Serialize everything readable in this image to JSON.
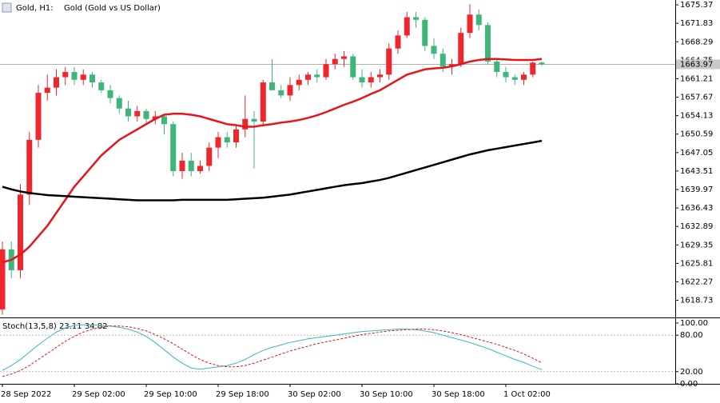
{
  "header": {
    "symbol": "Gold, H1:",
    "description": "Gold (Gold vs US Dollar)"
  },
  "chart_data": [
    {
      "type": "candlestick",
      "categories": [
        "28 Sep 2022",
        null,
        null,
        null,
        null,
        null,
        null,
        null,
        "29 Sep 02:00",
        null,
        null,
        null,
        null,
        null,
        null,
        null,
        "29 Sep 10:00",
        null,
        null,
        null,
        null,
        null,
        null,
        null,
        "29 Sep 18:00",
        null,
        null,
        null,
        null,
        null,
        null,
        null,
        "30 Sep 02:00",
        null,
        null,
        null,
        null,
        null,
        null,
        null,
        "30 Sep 10:00",
        null,
        null,
        null,
        null,
        null,
        null,
        null,
        "30 Sep 18:00",
        null,
        null,
        null,
        null,
        null,
        null,
        null,
        "1 Oct 02:00",
        null,
        null,
        null,
        null
      ],
      "open": [
        1617,
        1628.5,
        1624.5,
        1639,
        1649.5,
        1658.5,
        1659.5,
        1661.5,
        1662.5,
        1661,
        1662,
        1660.5,
        1659,
        1657.5,
        1655.5,
        1654,
        1655,
        1653.5,
        1654,
        1652.5,
        1643.5,
        1645.5,
        1643.5,
        1644.5,
        1648,
        1650,
        1649,
        1651.5,
        1653.5,
        1653,
        1660.5,
        1659,
        1658,
        1660,
        1661,
        1662,
        1661.5,
        1664,
        1665,
        1665.5,
        1661.5,
        1660.5,
        1661.5,
        1662,
        1667,
        1669.5,
        1673,
        1672.5,
        1667.5,
        1666,
        1663.5,
        1664,
        1670,
        1673.5,
        1671.5,
        1664.5,
        1662.5,
        1661.5,
        1661,
        1662,
        1664.3
      ],
      "high": [
        1630,
        1630,
        1641,
        1651,
        1660,
        1662,
        1663,
        1663.5,
        1663.5,
        1663,
        1662.5,
        1661,
        1660,
        1658,
        1657,
        1656,
        1655.5,
        1655,
        1654.5,
        1653,
        1647,
        1647,
        1645.5,
        1649,
        1651,
        1651,
        1652.5,
        1658,
        1655,
        1661,
        1665,
        1660,
        1661.5,
        1662,
        1662.5,
        1663,
        1665,
        1666,
        1666.5,
        1666,
        1663,
        1662.5,
        1663,
        1668,
        1670.5,
        1674,
        1674,
        1673,
        1669,
        1667,
        1665,
        1671,
        1675.5,
        1674.5,
        1672,
        1665,
        1663.5,
        1662,
        1662.5,
        1664.5,
        1664.5
      ],
      "low": [
        1616,
        1623,
        1623,
        1637,
        1648,
        1657,
        1658,
        1660,
        1660,
        1660,
        1659.5,
        1658.5,
        1656.5,
        1654.5,
        1653,
        1653,
        1652.5,
        1652.5,
        1650.5,
        1642.5,
        1642,
        1642.5,
        1643,
        1643.5,
        1646,
        1648,
        1648,
        1650,
        1644,
        1652,
        1659,
        1657.5,
        1657,
        1659,
        1660,
        1660.5,
        1661,
        1663,
        1663.5,
        1661,
        1659.5,
        1659.5,
        1660.5,
        1661,
        1666,
        1669,
        1671,
        1666.5,
        1665,
        1662.5,
        1662,
        1663.5,
        1669,
        1670.5,
        1664,
        1661.5,
        1660.5,
        1660,
        1660,
        1661.5,
        1663.7
      ],
      "close": [
        1628.5,
        1624.5,
        1639,
        1649.5,
        1658.5,
        1659.5,
        1661.5,
        1662.5,
        1661,
        1662,
        1660.5,
        1659,
        1657.5,
        1655.5,
        1654,
        1655,
        1653.5,
        1654,
        1652.5,
        1643.5,
        1645.5,
        1643.5,
        1644.5,
        1648,
        1650,
        1649,
        1651.5,
        1653.5,
        1653,
        1660.5,
        1659,
        1658,
        1660,
        1661,
        1662,
        1661.5,
        1664,
        1665,
        1665.5,
        1661.5,
        1660.5,
        1661.5,
        1662,
        1667,
        1669.5,
        1673,
        1672.5,
        1667.5,
        1666,
        1663.5,
        1664,
        1670,
        1673.5,
        1671.5,
        1664.5,
        1662.5,
        1661.5,
        1661,
        1662,
        1664.3,
        1663.97
      ],
      "up_color": "#f0262d",
      "down_color": "#3fb57a",
      "series": [
        {
          "color": "#e8141c",
          "values": [
            1626,
            1626.5,
            1627.5,
            1629,
            1631,
            1633,
            1635.5,
            1638,
            1640.5,
            1642.5,
            1644.5,
            1646.5,
            1648,
            1649.5,
            1650.5,
            1651.5,
            1652.5,
            1653.5,
            1654.3,
            1654.5,
            1654.5,
            1654.3,
            1654,
            1653.5,
            1653,
            1652.5,
            1652.3,
            1652,
            1652,
            1652.3,
            1652.5,
            1652.8,
            1653,
            1653.3,
            1653.7,
            1654.2,
            1654.8,
            1655.5,
            1656.2,
            1656.8,
            1657.5,
            1658.3,
            1659,
            1660,
            1661,
            1662,
            1662.5,
            1663,
            1663.2,
            1663.3,
            1663.6,
            1664,
            1664.5,
            1664.8,
            1665,
            1665,
            1664.9,
            1664.8,
            1664.8,
            1664.8,
            1665
          ]
        },
        {
          "color": "#000000",
          "values": [
            1640.5,
            1640,
            1639.6,
            1639.3,
            1639.1,
            1638.9,
            1638.8,
            1638.7,
            1638.6,
            1638.5,
            1638.4,
            1638.3,
            1638.2,
            1638.1,
            1638,
            1637.9,
            1637.9,
            1637.9,
            1637.9,
            1637.9,
            1638,
            1638,
            1638,
            1638,
            1638,
            1638,
            1638.1,
            1638.2,
            1638.3,
            1638.4,
            1638.6,
            1638.8,
            1639,
            1639.3,
            1639.6,
            1639.9,
            1640.2,
            1640.5,
            1640.8,
            1641,
            1641.2,
            1641.5,
            1641.8,
            1642.2,
            1642.7,
            1643.2,
            1643.7,
            1644.2,
            1644.7,
            1645.2,
            1645.7,
            1646.2,
            1646.7,
            1647.1,
            1647.5,
            1647.8,
            1648.1,
            1648.4,
            1648.7,
            1649,
            1649.3
          ]
        }
      ],
      "bid": 1663.97,
      "ylim": [
        1615.6,
        1676.3
      ],
      "yticks": [
        1675.37,
        1671.83,
        1668.29,
        1664.75,
        1661.21,
        1657.67,
        1654.13,
        1650.59,
        1647.05,
        1643.51,
        1639.97,
        1636.43,
        1632.89,
        1629.35,
        1625.81,
        1622.27,
        1618.73
      ]
    },
    {
      "type": "line",
      "title": "Stoch(13,5,8) 23.11 34.82",
      "series": [
        {
          "color": "#38b6c6",
          "dashed": false,
          "values": [
            22,
            30,
            40,
            52,
            64,
            75,
            85,
            92,
            96,
            97,
            97,
            96,
            95,
            93,
            90,
            85,
            78,
            68,
            56,
            44,
            34,
            26,
            24,
            26,
            28,
            30,
            34,
            40,
            48,
            55,
            60,
            64,
            68,
            71,
            74,
            76,
            78,
            80,
            82,
            84,
            86,
            87,
            88,
            89,
            90,
            90,
            89,
            87,
            84,
            80,
            76,
            72,
            68,
            63,
            58,
            52,
            46,
            40,
            35,
            29,
            23.11
          ]
        },
        {
          "color": "#e8141c",
          "dashed": true,
          "values": [
            12,
            16,
            22,
            30,
            40,
            50,
            60,
            70,
            78,
            85,
            90,
            93,
            95,
            95,
            94,
            91,
            87,
            81,
            74,
            66,
            57,
            48,
            40,
            34,
            30,
            28,
            28,
            30,
            34,
            39,
            44,
            49,
            54,
            58,
            62,
            66,
            69,
            72,
            75,
            78,
            81,
            83,
            85,
            87,
            88,
            89,
            90,
            90,
            89,
            87,
            84,
            81,
            77,
            73,
            69,
            65,
            60,
            55,
            49,
            42,
            34.82
          ]
        }
      ],
      "levels": [
        80,
        20
      ],
      "ylim": [
        0,
        100
      ],
      "yticks": [
        {
          "value": 100,
          "label": "100.00"
        },
        {
          "value": 80,
          "label": "80.00"
        },
        {
          "value": 20,
          "label": "20.00"
        },
        {
          "value": 0,
          "label": "0.00"
        }
      ]
    }
  ]
}
